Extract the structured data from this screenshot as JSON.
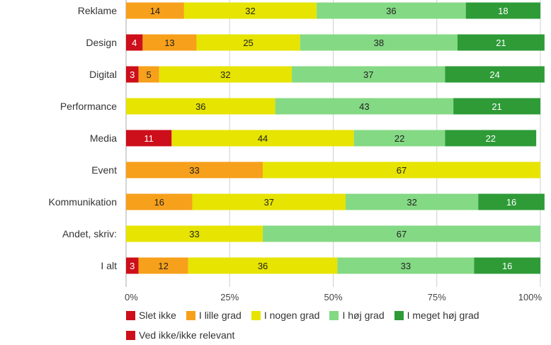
{
  "chart_data": {
    "type": "bar",
    "orientation": "horizontal",
    "stacked": true,
    "percent": true,
    "categories": [
      "Reklame",
      "Design",
      "Digital",
      "Performance",
      "Media",
      "Event",
      "Kommunikation",
      "Andet, skriv:",
      "I alt"
    ],
    "series": [
      {
        "name": "Slet ikke",
        "color": "#cc0f1b",
        "text_color": "#ffffff",
        "values": [
          0,
          4,
          3,
          0,
          11,
          0,
          0,
          0,
          3
        ]
      },
      {
        "name": "I lille grad",
        "color": "#f7a01b",
        "text_color": "#222222",
        "values": [
          14,
          13,
          5,
          0,
          0,
          33,
          16,
          0,
          12
        ]
      },
      {
        "name": "I nogen grad",
        "color": "#e6e400",
        "text_color": "#222222",
        "values": [
          32,
          25,
          32,
          36,
          44,
          67,
          37,
          33,
          36
        ]
      },
      {
        "name": "I høj grad",
        "color": "#84d984",
        "text_color": "#222222",
        "values": [
          36,
          38,
          37,
          43,
          22,
          0,
          32,
          67,
          33
        ]
      },
      {
        "name": "I meget høj grad",
        "color": "#2e9b37",
        "text_color": "#ffffff",
        "values": [
          18,
          21,
          24,
          21,
          22,
          0,
          16,
          0,
          16
        ]
      },
      {
        "name": "Ved ikke/ikke relevant",
        "color": "#cc0f1b",
        "text_color": "#ffffff",
        "values": [
          0,
          0,
          0,
          0,
          0,
          0,
          0,
          0,
          0
        ]
      }
    ],
    "xlim": [
      0,
      100
    ],
    "x_ticks": [
      "0%",
      "25%",
      "50%",
      "75%",
      "100%"
    ],
    "grid": true,
    "legend_position": "bottom"
  }
}
